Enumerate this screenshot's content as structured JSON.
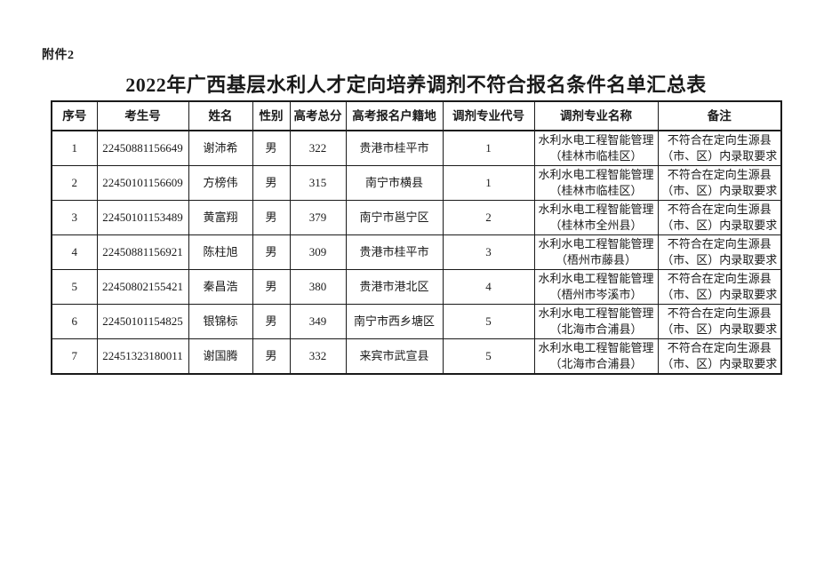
{
  "page": {
    "attachment_label": "附件2",
    "title": "2022年广西基层水利人才定向培养调剂不符合报名条件名单汇总表",
    "background_color": "#ffffff",
    "text_color": "#1a1a1a",
    "border_color": "#1a1a1a"
  },
  "table": {
    "headers": [
      "序号",
      "考生号",
      "姓名",
      "性别",
      "高考总分",
      "高考报名户籍地",
      "调剂专业代号",
      "调剂专业名称",
      "备注"
    ],
    "rows": [
      [
        "1",
        "22450881156649",
        "谢沛希",
        "男",
        "322",
        "贵港市桂平市",
        "1",
        "水利水电工程智能管理（桂林市临桂区）",
        "不符合在定向生源县（市、区）内录取要求"
      ],
      [
        "2",
        "22450101156609",
        "方榜伟",
        "男",
        "315",
        "南宁市横县",
        "1",
        "水利水电工程智能管理（桂林市临桂区）",
        "不符合在定向生源县（市、区）内录取要求"
      ],
      [
        "3",
        "22450101153489",
        "黄富翔",
        "男",
        "379",
        "南宁市邕宁区",
        "2",
        "水利水电工程智能管理（桂林市全州县）",
        "不符合在定向生源县（市、区）内录取要求"
      ],
      [
        "4",
        "22450881156921",
        "陈柱旭",
        "男",
        "309",
        "贵港市桂平市",
        "3",
        "水利水电工程智能管理（梧州市藤县）",
        "不符合在定向生源县（市、区）内录取要求"
      ],
      [
        "5",
        "22450802155421",
        "秦昌浩",
        "男",
        "380",
        "贵港市港北区",
        "4",
        "水利水电工程智能管理（梧州市岑溪市）",
        "不符合在定向生源县（市、区）内录取要求"
      ],
      [
        "6",
        "22450101154825",
        "银锦标",
        "男",
        "349",
        "南宁市西乡塘区",
        "5",
        "水利水电工程智能管理（北海市合浦县）",
        "不符合在定向生源县（市、区）内录取要求"
      ],
      [
        "7",
        "22451323180011",
        "谢国腾",
        "男",
        "332",
        "来宾市武宣县",
        "5",
        "水利水电工程智能管理（北海市合浦县）",
        "不符合在定向生源县（市、区）内录取要求"
      ]
    ]
  }
}
